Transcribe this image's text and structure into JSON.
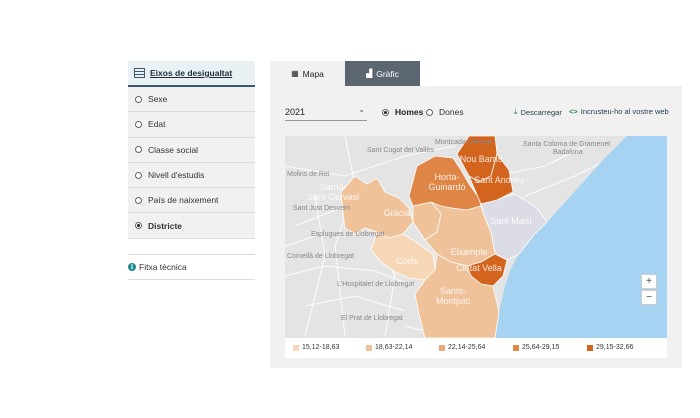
{
  "sidebar": {
    "title": "Eixos de desigualtat",
    "items": [
      {
        "label": "Sexe",
        "selected": false
      },
      {
        "label": "Edat",
        "selected": false
      },
      {
        "label": "Classe social",
        "selected": false
      },
      {
        "label": "Nivell d'estudis",
        "selected": false
      },
      {
        "label": "País de naixement",
        "selected": false
      },
      {
        "label": "Districte",
        "selected": true
      }
    ],
    "fitxa": "Fitxa tècnica",
    "info_icon": "i"
  },
  "tabs": {
    "map": "Mapa",
    "chart": "Gràfic"
  },
  "controls": {
    "year": "2021",
    "homes": "Homes",
    "dones": "Dones",
    "selected_gender": "Homes",
    "download": "Descarregar",
    "embed": "Incrusteu-ho al vostre web"
  },
  "map": {
    "labels": {
      "nou_barris": "Nou Barris",
      "horta_guinardo_1": "Horta-",
      "horta_guinardo_2": "Guinardó",
      "sant_andreu": "Sant Andreu",
      "sarria_1": "Sarrià-",
      "sarria_2": "Sant Gervasi",
      "gracia": "Gràcia",
      "sant_marti": "Sant Martí",
      "corts": "Corts",
      "eixample": "Eixample",
      "ciutat_vella": "Ciutat Vella",
      "sants_1": "Sants-",
      "sants_2": "Montjuïc",
      "bg_sant_cugat": "Sant Cugat del Vallès",
      "bg_sant_just": "Sant Just Desvern",
      "bg_esplugues": "Esplugues de Llobregat",
      "bg_hospitalet": "L'Hospitalet de Llobregat",
      "bg_prat": "El Prat de Llobregat",
      "bg_cornella": "Cornellà de Llobregat",
      "bg_molins": "Molins de Rei",
      "bg_badalona": "Badalona",
      "bg_santa_coloma": "Santa Coloma de Gramenet",
      "bg_montcada": "Montcada i Reixac"
    },
    "zoom_in": "+",
    "zoom_out": "−",
    "colors": {
      "c1": "#f6d7b6",
      "c2": "#f0c29a",
      "c3": "#e9a978",
      "c4": "#df8646",
      "c5": "#d2641e",
      "sea": "#a6d3f2",
      "land": "#e4e4e4"
    },
    "districts": [
      {
        "name": "Nou Barris",
        "class": 5
      },
      {
        "name": "Sant Andreu",
        "class": 5
      },
      {
        "name": "Horta-Guinardó",
        "class": 4
      },
      {
        "name": "Sarrià-Sant Gervasi",
        "class": 2
      },
      {
        "name": "Gràcia",
        "class": 2
      },
      {
        "name": "Les Corts",
        "class": 1
      },
      {
        "name": "Eixample",
        "class": 2
      },
      {
        "name": "Ciutat Vella",
        "class": 5
      },
      {
        "name": "Sants-Montjuïc",
        "class": 2
      }
    ]
  },
  "legend": [
    {
      "label": "15,12-18,63",
      "color": "#f6d7b6"
    },
    {
      "label": "18,63-22,14",
      "color": "#f0c29a"
    },
    {
      "label": "22,14-25,64",
      "color": "#e9a978"
    },
    {
      "label": "25,64-29,15",
      "color": "#df8646"
    },
    {
      "label": "29,15-32,66",
      "color": "#d2641e"
    }
  ]
}
